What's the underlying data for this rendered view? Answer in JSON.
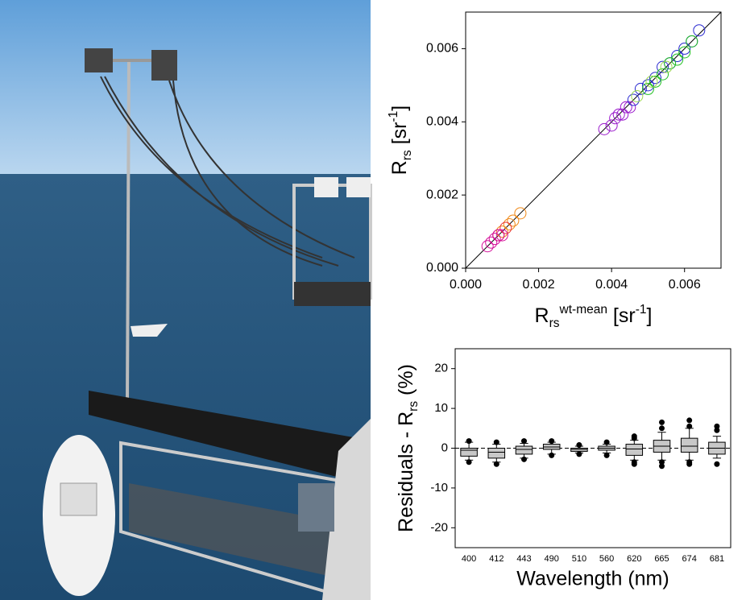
{
  "chart_data": [
    {
      "type": "scatter",
      "x_label": [
        "R",
        "rs",
        "wt-mean",
        " [sr",
        "-1",
        "]"
      ],
      "y_label": [
        "R",
        "rs",
        " [sr",
        "-1",
        "]"
      ],
      "xlim": [
        0,
        0.007
      ],
      "ylim": [
        0,
        0.007
      ],
      "xticks": [
        {
          "value": 0,
          "label": "0.000"
        },
        {
          "value": 0.002,
          "label": "0.002"
        },
        {
          "value": 0.004,
          "label": "0.004"
        },
        {
          "value": 0.006,
          "label": "0.006"
        }
      ],
      "yticks": [
        {
          "value": 0,
          "label": "0.000"
        },
        {
          "value": 0.002,
          "label": "0.002"
        },
        {
          "value": 0.004,
          "label": "0.004"
        },
        {
          "value": 0.006,
          "label": "0.006"
        }
      ],
      "series": [
        {
          "color": "#9a1acc",
          "x": [
            0.0038,
            0.004,
            0.0041,
            0.0042,
            0.0043,
            0.0044,
            0.0045
          ],
          "y": [
            0.0038,
            0.0039,
            0.0041,
            0.0042,
            0.0042,
            0.0044,
            0.0044
          ]
        },
        {
          "color": "#2a2ad0",
          "x": [
            0.0046,
            0.0048,
            0.005,
            0.0052,
            0.0054,
            0.0056,
            0.0058,
            0.006,
            0.0062,
            0.0064
          ],
          "y": [
            0.0046,
            0.0049,
            0.005,
            0.0052,
            0.0055,
            0.0056,
            0.0058,
            0.006,
            0.0062,
            0.0065
          ]
        },
        {
          "color": "#22c022",
          "x": [
            0.005,
            0.0052,
            0.0054,
            0.0056,
            0.0058,
            0.006,
            0.0062
          ],
          "y": [
            0.0049,
            0.0051,
            0.0053,
            0.0056,
            0.0057,
            0.0059,
            0.0062
          ]
        },
        {
          "color": "#9ad650",
          "x": [
            0.0047,
            0.0051,
            0.0055
          ],
          "y": [
            0.0047,
            0.0051,
            0.0055
          ]
        },
        {
          "color": "#f08a1a",
          "x": [
            0.001,
            0.0012,
            0.0013,
            0.0015
          ],
          "y": [
            0.001,
            0.0012,
            0.0013,
            0.0015
          ]
        },
        {
          "color": "#e83030",
          "x": [
            0.0009,
            0.0011
          ],
          "y": [
            0.0009,
            0.0011
          ]
        },
        {
          "color": "#d4109a",
          "x": [
            0.0006,
            0.0007,
            0.0008,
            0.0009,
            0.001
          ],
          "y": [
            0.0006,
            0.0007,
            0.0008,
            0.0009,
            0.0009
          ]
        }
      ]
    },
    {
      "type": "box",
      "x_label": "Wavelength (nm)",
      "y_label": [
        "Residuals - R",
        "rs",
        " (%)"
      ],
      "categories": [
        "400",
        "412",
        "443",
        "490",
        "510",
        "560",
        "620",
        "665",
        "674",
        "681"
      ],
      "ylim": [
        -25,
        25
      ],
      "yticks": [
        -20,
        -10,
        0,
        10,
        20
      ],
      "color": "#c8c8c8",
      "boxes": [
        {
          "whisker_low": -3,
          "q1": -2,
          "median": -0.5,
          "q3": 0,
          "whisker_high": 1.5,
          "outliers": [
            -3.5,
            1.8
          ]
        },
        {
          "whisker_low": -3.5,
          "q1": -2.5,
          "median": -1,
          "q3": 0,
          "whisker_high": 1,
          "outliers": [
            -4,
            1.5
          ]
        },
        {
          "whisker_low": -2.5,
          "q1": -1.5,
          "median": -0.3,
          "q3": 0.5,
          "whisker_high": 1.2,
          "outliers": [
            -2.8,
            1.8
          ]
        },
        {
          "whisker_low": -1.5,
          "q1": -0.3,
          "median": 0.3,
          "q3": 1,
          "whisker_high": 1.5,
          "outliers": [
            -1.8,
            1.8
          ]
        },
        {
          "whisker_low": -1.2,
          "q1": -0.8,
          "median": -0.3,
          "q3": 0,
          "whisker_high": 0.5,
          "outliers": [
            -1.5,
            0.8
          ]
        },
        {
          "whisker_low": -1.2,
          "q1": -0.5,
          "median": 0,
          "q3": 0.5,
          "whisker_high": 1,
          "outliers": [
            -1.8,
            1.5
          ]
        },
        {
          "whisker_low": -3,
          "q1": -1.8,
          "median": -0.2,
          "q3": 1,
          "whisker_high": 2,
          "outliers": [
            -4,
            -3.5,
            2.5,
            3
          ]
        },
        {
          "whisker_low": -3,
          "q1": -1,
          "median": 0.5,
          "q3": 2,
          "whisker_high": 4,
          "outliers": [
            -4.5,
            -3.5,
            5,
            6.5
          ]
        },
        {
          "whisker_low": -3,
          "q1": -1,
          "median": 0.5,
          "q3": 2.5,
          "whisker_high": 5,
          "outliers": [
            -4,
            -3.5,
            5.5,
            7
          ]
        },
        {
          "whisker_low": -2.5,
          "q1": -1.5,
          "median": 0,
          "q3": 1.5,
          "whisker_high": 3,
          "outliers": [
            -4,
            4.5,
            5.5
          ]
        }
      ]
    }
  ]
}
